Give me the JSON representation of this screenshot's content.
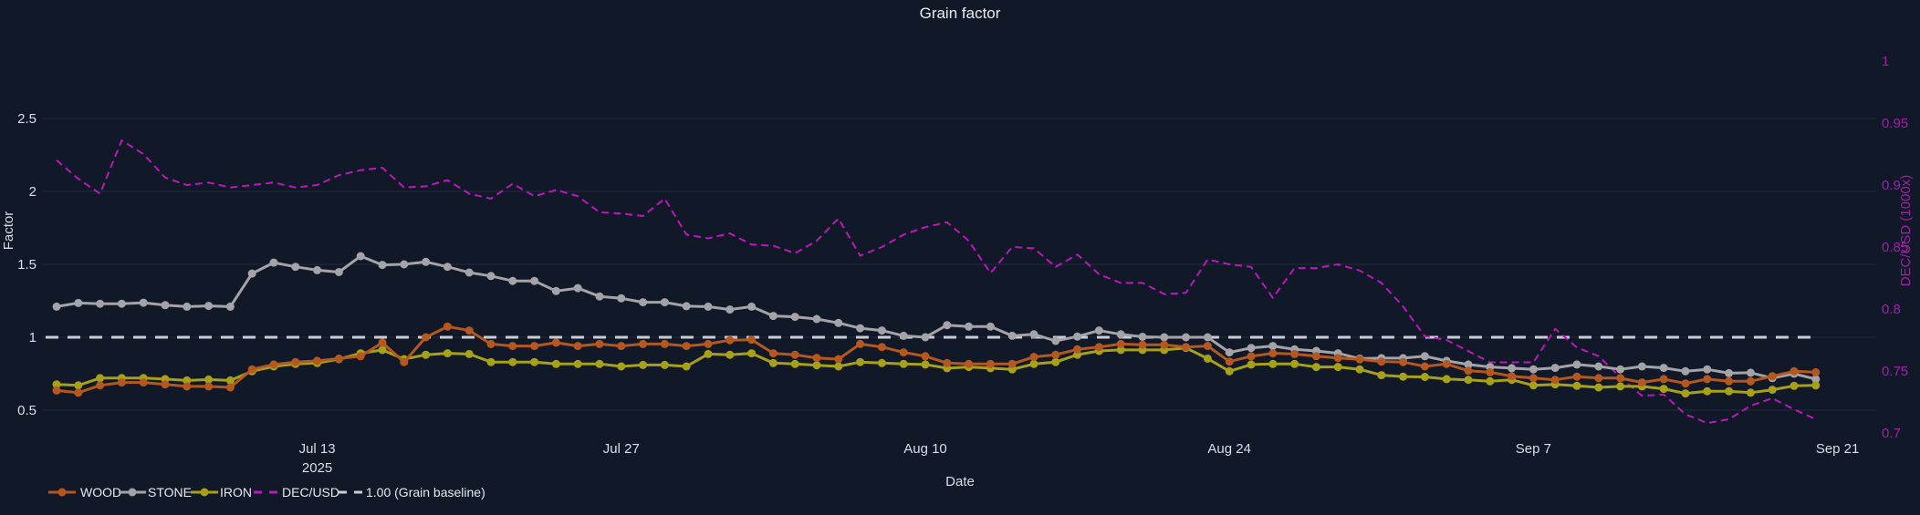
{
  "chart_data": {
    "type": "line",
    "title": "Grain factor",
    "xlabel": "Date",
    "x_start_date": "2025-07-01",
    "x_end_date": "2025-09-20",
    "n_points": 82,
    "background": "#111827",
    "grid_color": "#222c3e",
    "yaxis_left": {
      "title": "Factor",
      "ticks": [
        0.5,
        1,
        1.5,
        2,
        2.5
      ],
      "text_color": "#d9dee8"
    },
    "yaxis_right": {
      "title": "DEC/USD (1000x)",
      "ticks": [
        0.7,
        0.75,
        0.8,
        0.85,
        0.9,
        0.95,
        1
      ],
      "text_color": "#a220a8"
    },
    "x_ticks": [
      {
        "day": 12,
        "label": "Jul 13",
        "sublabel": "2025"
      },
      {
        "day": 26,
        "label": "Jul 27",
        "sublabel": ""
      },
      {
        "day": 40,
        "label": "Aug 10",
        "sublabel": ""
      },
      {
        "day": 54,
        "label": "Aug 24",
        "sublabel": ""
      },
      {
        "day": 68,
        "label": "Sep 7",
        "sublabel": ""
      },
      {
        "day": 82,
        "label": "Sep 21",
        "sublabel": ""
      }
    ],
    "baseline": {
      "label": "1.00 (Grain baseline)",
      "value": 1.0,
      "color": "#c9cdd6"
    },
    "series": [
      {
        "name": "WOOD",
        "color": "#b5581f",
        "axis": "left",
        "dash": false,
        "markers": true,
        "values": [
          0.635,
          0.62,
          0.67,
          0.69,
          0.69,
          0.677,
          0.663,
          0.663,
          0.656,
          0.78,
          0.813,
          0.83,
          0.838,
          0.854,
          0.87,
          0.963,
          0.83,
          1.0,
          1.073,
          1.046,
          0.954,
          0.94,
          0.94,
          0.963,
          0.94,
          0.954,
          0.94,
          0.954,
          0.954,
          0.94,
          0.954,
          0.98,
          0.983,
          0.89,
          0.88,
          0.858,
          0.85,
          0.954,
          0.933,
          0.896,
          0.87,
          0.823,
          0.817,
          0.817,
          0.817,
          0.865,
          0.88,
          0.917,
          0.933,
          0.954,
          0.948,
          0.948,
          0.933,
          0.94,
          0.833,
          0.87,
          0.89,
          0.885,
          0.87,
          0.858,
          0.848,
          0.833,
          0.83,
          0.8,
          0.817,
          0.77,
          0.76,
          0.733,
          0.72,
          0.708,
          0.73,
          0.72,
          0.72,
          0.69,
          0.713,
          0.683,
          0.713,
          0.698,
          0.698,
          0.733,
          0.767,
          0.76
        ]
      },
      {
        "name": "STONE",
        "color": "#a3a3a8",
        "axis": "left",
        "dash": false,
        "markers": true,
        "values": [
          1.21,
          1.235,
          1.23,
          1.23,
          1.237,
          1.22,
          1.21,
          1.215,
          1.21,
          1.437,
          1.512,
          1.483,
          1.46,
          1.447,
          1.556,
          1.496,
          1.5,
          1.517,
          1.483,
          1.444,
          1.42,
          1.386,
          1.386,
          1.317,
          1.337,
          1.28,
          1.267,
          1.24,
          1.24,
          1.213,
          1.21,
          1.19,
          1.21,
          1.146,
          1.14,
          1.125,
          1.098,
          1.062,
          1.046,
          1.01,
          1.0,
          1.083,
          1.073,
          1.073,
          1.01,
          1.02,
          0.975,
          1.005,
          1.046,
          1.02,
          1.003,
          1.0,
          1.0,
          1.0,
          0.896,
          0.927,
          0.94,
          0.917,
          0.906,
          0.89,
          0.854,
          0.857,
          0.857,
          0.87,
          0.838,
          0.813,
          0.796,
          0.788,
          0.78,
          0.79,
          0.813,
          0.8,
          0.78,
          0.8,
          0.79,
          0.767,
          0.78,
          0.754,
          0.757,
          0.72,
          0.75,
          0.713
        ]
      },
      {
        "name": "IRON",
        "color": "#a6a118",
        "axis": "left",
        "dash": false,
        "markers": true,
        "values": [
          0.677,
          0.67,
          0.72,
          0.72,
          0.72,
          0.713,
          0.704,
          0.71,
          0.704,
          0.767,
          0.8,
          0.817,
          0.823,
          0.85,
          0.89,
          0.913,
          0.85,
          0.88,
          0.89,
          0.885,
          0.83,
          0.83,
          0.83,
          0.817,
          0.817,
          0.817,
          0.8,
          0.81,
          0.81,
          0.8,
          0.885,
          0.88,
          0.89,
          0.823,
          0.817,
          0.808,
          0.8,
          0.83,
          0.823,
          0.817,
          0.813,
          0.788,
          0.796,
          0.788,
          0.78,
          0.817,
          0.83,
          0.88,
          0.906,
          0.913,
          0.913,
          0.913,
          0.927,
          0.854,
          0.767,
          0.813,
          0.817,
          0.817,
          0.796,
          0.796,
          0.78,
          0.74,
          0.73,
          0.728,
          0.713,
          0.708,
          0.698,
          0.708,
          0.67,
          0.677,
          0.667,
          0.656,
          0.663,
          0.663,
          0.646,
          0.615,
          0.63,
          0.63,
          0.62,
          0.64,
          0.667,
          0.67
        ]
      },
      {
        "name": "DEC/USD",
        "color": "#bc17bc",
        "axis": "right",
        "dash": true,
        "markers": false,
        "values": [
          0.92,
          0.905,
          0.893,
          0.936,
          0.925,
          0.906,
          0.9,
          0.902,
          0.898,
          0.9,
          0.902,
          0.898,
          0.9,
          0.908,
          0.912,
          0.914,
          0.898,
          0.899,
          0.904,
          0.893,
          0.889,
          0.901,
          0.891,
          0.896,
          0.891,
          0.878,
          0.877,
          0.875,
          0.889,
          0.86,
          0.857,
          0.861,
          0.852,
          0.851,
          0.845,
          0.855,
          0.873,
          0.843,
          0.85,
          0.86,
          0.866,
          0.87,
          0.855,
          0.829,
          0.85,
          0.849,
          0.834,
          0.844,
          0.828,
          0.821,
          0.821,
          0.812,
          0.813,
          0.84,
          0.836,
          0.834,
          0.809,
          0.833,
          0.833,
          0.836,
          0.831,
          0.821,
          0.802,
          0.778,
          0.775,
          0.766,
          0.757,
          0.757,
          0.757,
          0.784,
          0.769,
          0.762,
          0.745,
          0.73,
          0.731,
          0.715,
          0.708,
          0.711,
          0.722,
          0.728,
          0.719,
          0.711
        ]
      }
    ],
    "legend": [
      "WOOD",
      "STONE",
      "IRON",
      "DEC/USD",
      "1.00 (Grain baseline)"
    ]
  }
}
